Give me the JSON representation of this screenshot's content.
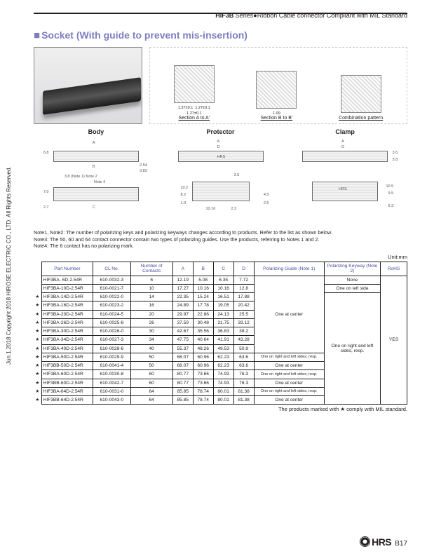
{
  "header": {
    "series": "HIF3B",
    "series_suffix": " Series",
    "bullet": "●",
    "description": "Ribbon Cable connector Compliant with MIL Standard"
  },
  "section_title": "Socket (With guide to prevent mis-insertion)",
  "section_box_glyph": "■",
  "tech_row": {
    "section_a": {
      "label": "Section A to A'",
      "dims": [
        "1.27±0.1",
        "1.27±0.1",
        "1.27±0.1"
      ]
    },
    "section_b": {
      "label": "Section B to B'",
      "dims": [
        "1.09"
      ],
      "height": "35.6"
    },
    "combo": {
      "label": "Combination pattern"
    }
  },
  "drawings": {
    "body": {
      "title": "Body",
      "ann": [
        "A",
        "B",
        "6.8",
        "2.54",
        "3.83",
        "3.8 (Note 1) Note 2",
        "Note 4",
        "7.0",
        "2.7",
        "C"
      ]
    },
    "protector": {
      "title": "Protector",
      "ann": [
        "A",
        "D",
        "HRS",
        "10.2",
        "3.5",
        "8.2",
        "1.0",
        "10.16",
        "2.3",
        "4.5",
        "2.5"
      ]
    },
    "clamp": {
      "title": "Clamp",
      "ann": [
        "A",
        "D",
        "3.6",
        "3.8",
        "HRS",
        "10.5",
        "9.5",
        "6.3"
      ]
    }
  },
  "notes": {
    "n12": "Note1, Note2: The number of polarizing keys and polarizing keyways changes according to products. Refer to the list as shown below.",
    "n3": "Note3: The 50, 60 and 64 contact connector contain two types of polarizing guides. Use the products, referring to Notes 1 and 2.",
    "n4": "Note4: The 6 contact has no polarizing mark."
  },
  "unit_label": "Unit:mm",
  "table": {
    "headers": [
      "Part Number",
      "CL No.",
      "Number of Contacts",
      "A",
      "B",
      "C",
      "D",
      "Polarizing Guide (Note 1)",
      "Polarizing Keyway (Note 2)",
      "RoHS"
    ],
    "pg_center": "One at center",
    "pg_rl": "One on right and left sides, resp.",
    "pk_none": "None",
    "pk_left": "One on left side",
    "pk_rl": "One on right and left sides, resp.",
    "rohs": "YES",
    "rows": [
      {
        "star": "",
        "pn": "HIF3BA- 6D-2.54R",
        "cl": "610-0032-3",
        "nc": "6",
        "a": "12.19",
        "b": "5.08",
        "c": "6.35",
        "d": "7.72",
        "pg": "",
        "pk": "none"
      },
      {
        "star": "",
        "pn": "HIF3BA-10D-2.54R",
        "cl": "610-0021-7",
        "nc": "10",
        "a": "17.27",
        "b": "10.16",
        "c": "10.16",
        "d": "12.8",
        "pg": "center",
        "pk": "left"
      },
      {
        "star": "★",
        "pn": "HIF3BA-14D-2.54R",
        "cl": "610-0022-0",
        "nc": "14",
        "a": "22.35",
        "b": "15.24",
        "c": "16.51",
        "d": "17.88",
        "pg": "center",
        "pk": "rl"
      },
      {
        "star": "★",
        "pn": "HIF3BA-16D-2.54R",
        "cl": "610-0023-2",
        "nc": "16",
        "a": "24.89",
        "b": "17.78",
        "c": "19.05",
        "d": "20.42",
        "pg": "center",
        "pk": "rl"
      },
      {
        "star": "★",
        "pn": "HIF3BA-20D-2.54R",
        "cl": "610-0024-5",
        "nc": "20",
        "a": "29.97",
        "b": "22.86",
        "c": "24.13",
        "d": "25.5",
        "pg": "center",
        "pk": "rl"
      },
      {
        "star": "★",
        "pn": "HIF3BA-26D-2.54R",
        "cl": "610-0025-8",
        "nc": "26",
        "a": "37.59",
        "b": "30.48",
        "c": "31.75",
        "d": "33.12",
        "pg": "center",
        "pk": "rl"
      },
      {
        "star": "★",
        "pn": "HIF3BA-30D-2.54R",
        "cl": "610-0026-0",
        "nc": "30",
        "a": "42.67",
        "b": "35.56",
        "c": "36.83",
        "d": "38.2",
        "pg": "center",
        "pk": "rl"
      },
      {
        "star": "★",
        "pn": "HIF3BA-34D-2.54R",
        "cl": "610-0027-3",
        "nc": "34",
        "a": "47.75",
        "b": "40.64",
        "c": "41.91",
        "d": "43.28",
        "pg": "center",
        "pk": "rl"
      },
      {
        "star": "★",
        "pn": "HIF3BA-40D-2.54R",
        "cl": "610-0028-6",
        "nc": "40",
        "a": "55.37",
        "b": "48.26",
        "c": "49.53",
        "d": "50.9",
        "pg": "center",
        "pk": "rl"
      },
      {
        "star": "★",
        "pn": "HIF3BA-50D-2.54R",
        "cl": "610-0029-9",
        "nc": "50",
        "a": "68.07",
        "b": "60.96",
        "c": "62.23",
        "d": "63.6",
        "pg": "rl",
        "pk": "rl"
      },
      {
        "star": "★",
        "pn": "HIF3BB-50D-2.54R",
        "cl": "610-0041-4",
        "nc": "50",
        "a": "68.07",
        "b": "60.96",
        "c": "62.23",
        "d": "63.6",
        "pg": "center_s",
        "pk": "rl"
      },
      {
        "star": "★",
        "pn": "HIF3BA-60D-2.54R",
        "cl": "610-0030-8",
        "nc": "60",
        "a": "80.77",
        "b": "73.66",
        "c": "74.93",
        "d": "76.3",
        "pg": "rl",
        "pk": "rl"
      },
      {
        "star": "★",
        "pn": "HIF3BB-60D-2.54R",
        "cl": "610-0042-7",
        "nc": "60",
        "a": "80.77",
        "b": "73.66",
        "c": "74.93",
        "d": "76.3",
        "pg": "center_s",
        "pk": "rl"
      },
      {
        "star": "★",
        "pn": "HIF3BA-64D-2.54R",
        "cl": "610-0031-0",
        "nc": "64",
        "a": "85.85",
        "b": "78.74",
        "c": "80.01",
        "d": "81.38",
        "pg": "rl",
        "pk": "rl"
      },
      {
        "star": "★",
        "pn": "HIF3BB-64D-2.54R",
        "cl": "610-0043-0",
        "nc": "64",
        "a": "85.85",
        "b": "78.74",
        "c": "80.01",
        "d": "81.38",
        "pg": "center_s",
        "pk": "rl"
      }
    ]
  },
  "foot_note": "The products marked with ★ comply with MIL standard.",
  "copyright": "Jun.1.2018  Copyright 2018 HIROSE ELECTRIC CO., LTD. All Rights Reserved.",
  "footer": {
    "brand": "HRS",
    "page": "B17"
  },
  "colors": {
    "heading": "#7d7dc0",
    "text": "#231f20",
    "table_header": "#444fa0"
  }
}
